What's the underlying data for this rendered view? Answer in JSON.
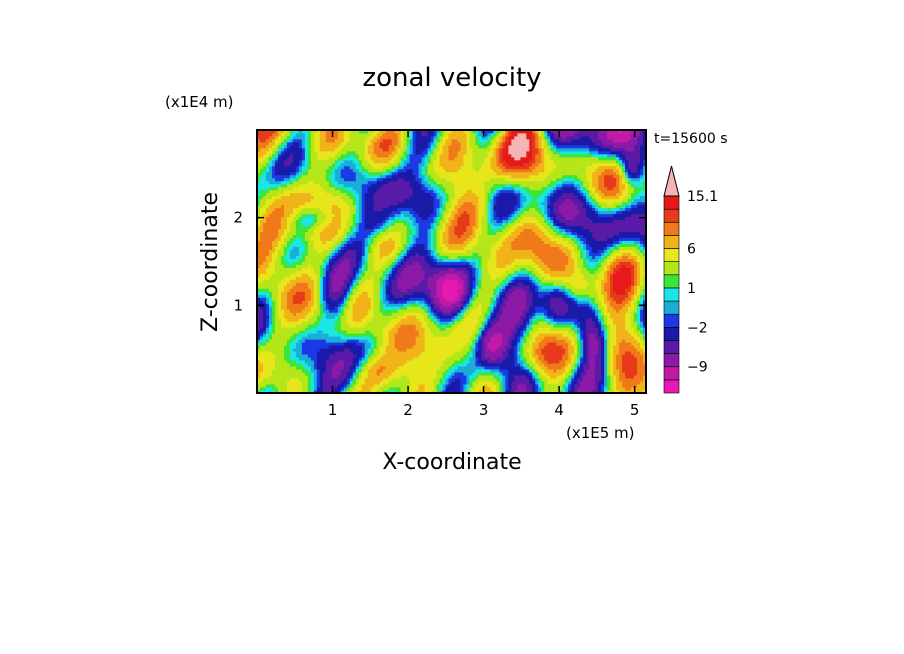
{
  "chart_data": {
    "type": "heatmap",
    "title": "zonal velocity",
    "xlabel": "X-coordinate",
    "ylabel": "Z-coordinate",
    "x_unit": "(x1E5 m)",
    "y_unit": "(x1E4 m)",
    "time_label": "t=15600 s",
    "xlim": [
      0,
      5.15
    ],
    "ylim": [
      0,
      3.0
    ],
    "x_ticks": [
      1,
      2,
      3,
      4,
      5
    ],
    "y_ticks": [
      1,
      2
    ],
    "colorbar": {
      "levels": [
        -15,
        -12,
        -9,
        -6,
        -4,
        -2,
        -1,
        0,
        1,
        2,
        4,
        6,
        8,
        10,
        12,
        15.1
      ],
      "colors": [
        "#e61ab3",
        "#c21aa8",
        "#8c1aa6",
        "#5a1aa8",
        "#1a1aa8",
        "#1a3ae6",
        "#1aaed6",
        "#1ae6e6",
        "#3ae63a",
        "#b4e61a",
        "#e6e61a",
        "#f0b41a",
        "#f07a1a",
        "#e63a1a",
        "#e61a1a",
        "#f07a7a",
        "#f7b4b4"
      ],
      "tick_labels": [
        {
          "label": "15.1",
          "level": 15.1
        },
        {
          "label": "6",
          "level": 6
        },
        {
          "label": "1",
          "level": 1
        },
        {
          "label": "−2",
          "level": -2
        },
        {
          "label": "−9",
          "level": -9
        }
      ]
    }
  }
}
